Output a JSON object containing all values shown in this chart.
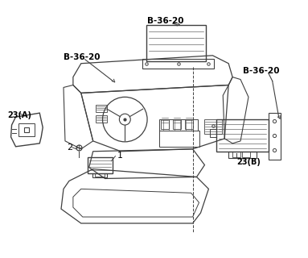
{
  "background_color": "#ffffff",
  "line_color": "#404040",
  "text_color": "#000000",
  "labels": {
    "b3620_left": "B-36-20",
    "b3620_center": "B-36-20",
    "b3620_right": "B-36-20",
    "label_23A": "23(A)",
    "label_23B": "23(B)",
    "label_1": "1",
    "label_2": "2"
  },
  "fig_width": 3.83,
  "fig_height": 3.2,
  "dpi": 100
}
